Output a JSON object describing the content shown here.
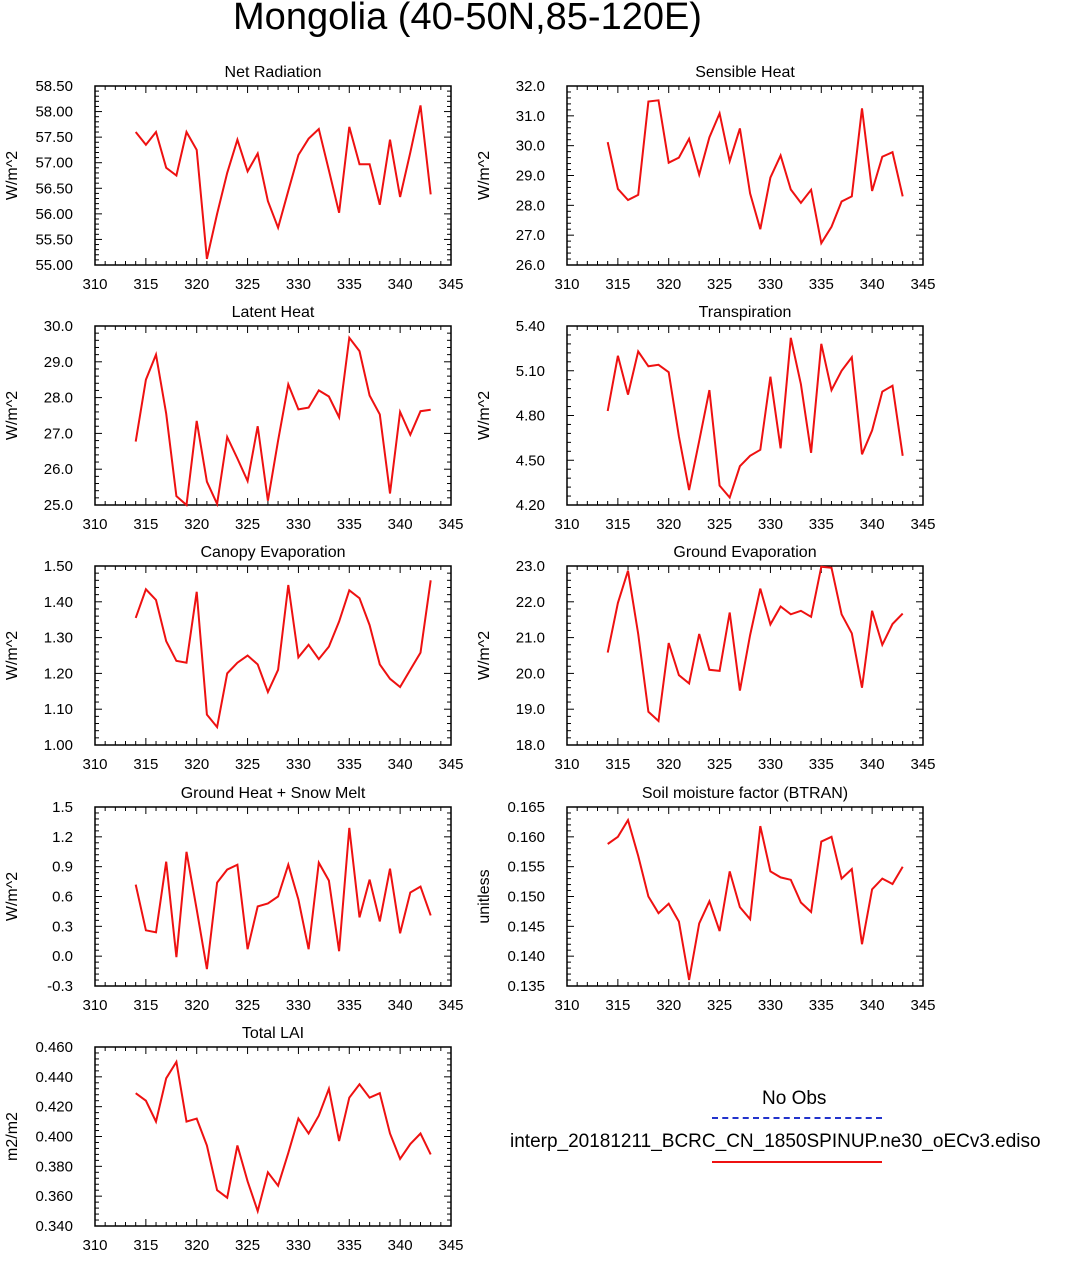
{
  "title": "Mongolia (40-50N,85-120E)",
  "legend": {
    "obs_label": "No Obs",
    "obs_color": "#2233cc",
    "model_label": "interp_20181211_BCRC_CN_1850SPINUP.ne30_oECv3.ediso",
    "model_color": "#ee1111"
  },
  "chart_data": [
    {
      "type": "line",
      "title": "Net Radiation",
      "ylabel": "W/m^2",
      "xlim": [
        310,
        345
      ],
      "ylim": [
        55.0,
        58.5
      ],
      "xticks": [
        "310",
        "315",
        "320",
        "325",
        "330",
        "335",
        "340",
        "345"
      ],
      "yticks": [
        "55.00",
        "55.50",
        "56.00",
        "56.50",
        "57.00",
        "57.50",
        "58.00",
        "58.50"
      ],
      "x": [
        314,
        315,
        316,
        317,
        318,
        319,
        320,
        321,
        322,
        323,
        324,
        325,
        326,
        327,
        328,
        329,
        330,
        331,
        332,
        333,
        334,
        335,
        336,
        337,
        338,
        339,
        340,
        341,
        342,
        343
      ],
      "series": [
        {
          "values": [
            57.6,
            57.35,
            57.6,
            56.9,
            56.75,
            57.6,
            57.25,
            55.12,
            56.0,
            56.8,
            57.45,
            56.83,
            57.18,
            56.25,
            55.73,
            56.45,
            57.15,
            57.47,
            57.66,
            56.85,
            56.02,
            57.7,
            56.97,
            56.97,
            56.18,
            57.45,
            56.33,
            57.2,
            58.12,
            56.38
          ]
        }
      ]
    },
    {
      "type": "line",
      "title": "Sensible Heat",
      "ylabel": "W/m^2",
      "xlim": [
        310,
        345
      ],
      "ylim": [
        26.0,
        32.0
      ],
      "xticks": [
        "310",
        "315",
        "320",
        "325",
        "330",
        "335",
        "340",
        "345"
      ],
      "yticks": [
        "26.0",
        "27.0",
        "28.0",
        "29.0",
        "30.0",
        "31.0",
        "32.0"
      ],
      "x": [
        314,
        315,
        316,
        317,
        318,
        319,
        320,
        321,
        322,
        323,
        324,
        325,
        326,
        327,
        328,
        329,
        330,
        331,
        332,
        333,
        334,
        335,
        336,
        337,
        338,
        339,
        340,
        341,
        342,
        343
      ],
      "series": [
        {
          "values": [
            30.12,
            28.55,
            28.18,
            28.35,
            31.48,
            31.52,
            29.43,
            29.6,
            30.23,
            29.03,
            30.28,
            31.08,
            29.48,
            30.58,
            28.4,
            27.2,
            28.93,
            29.67,
            28.53,
            28.08,
            28.52,
            26.73,
            27.28,
            28.13,
            28.3,
            31.25,
            28.48,
            29.63,
            29.78,
            28.3
          ]
        }
      ]
    },
    {
      "type": "line",
      "title": "Latent Heat",
      "ylabel": "W/m^2",
      "xlim": [
        310,
        345
      ],
      "ylim": [
        25.0,
        30.0
      ],
      "xticks": [
        "310",
        "315",
        "320",
        "325",
        "330",
        "335",
        "340",
        "345"
      ],
      "yticks": [
        "25.0",
        "26.0",
        "27.0",
        "28.0",
        "29.0",
        "30.0"
      ],
      "x": [
        314,
        315,
        316,
        317,
        318,
        319,
        320,
        321,
        322,
        323,
        324,
        325,
        326,
        327,
        328,
        329,
        330,
        331,
        332,
        333,
        334,
        335,
        336,
        337,
        338,
        339,
        340,
        341,
        342,
        343
      ],
      "series": [
        {
          "values": [
            26.77,
            28.5,
            29.2,
            27.55,
            25.25,
            25.0,
            27.35,
            25.65,
            25.03,
            26.9,
            26.3,
            25.67,
            27.2,
            25.12,
            26.8,
            28.37,
            27.67,
            27.72,
            28.2,
            28.03,
            27.45,
            29.67,
            29.3,
            28.06,
            27.53,
            25.32,
            27.6,
            26.96,
            27.62,
            27.66
          ]
        }
      ]
    },
    {
      "type": "line",
      "title": "Transpiration",
      "ylabel": "W/m^2",
      "xlim": [
        310,
        345
      ],
      "ylim": [
        4.2,
        5.4
      ],
      "xticks": [
        "310",
        "315",
        "320",
        "325",
        "330",
        "335",
        "340",
        "345"
      ],
      "yticks": [
        "4.20",
        "4.50",
        "4.80",
        "5.10",
        "5.40"
      ],
      "x": [
        314,
        315,
        316,
        317,
        318,
        319,
        320,
        321,
        322,
        323,
        324,
        325,
        326,
        327,
        328,
        329,
        330,
        331,
        332,
        333,
        334,
        335,
        336,
        337,
        338,
        339,
        340,
        341,
        342,
        343
      ],
      "series": [
        {
          "values": [
            4.83,
            5.2,
            4.94,
            5.23,
            5.13,
            5.14,
            5.09,
            4.66,
            4.3,
            4.63,
            4.97,
            4.33,
            4.25,
            4.46,
            4.53,
            4.57,
            5.06,
            4.58,
            5.32,
            5.01,
            4.55,
            5.28,
            4.97,
            5.1,
            5.19,
            4.54,
            4.7,
            4.96,
            5.0,
            4.53
          ]
        }
      ]
    },
    {
      "type": "line",
      "title": "Canopy Evaporation",
      "ylabel": "W/m^2",
      "xlim": [
        310,
        345
      ],
      "ylim": [
        1.0,
        1.5
      ],
      "xticks": [
        "310",
        "315",
        "320",
        "325",
        "330",
        "335",
        "340",
        "345"
      ],
      "yticks": [
        "1.00",
        "1.10",
        "1.20",
        "1.30",
        "1.40",
        "1.50"
      ],
      "x": [
        314,
        315,
        316,
        317,
        318,
        319,
        320,
        321,
        322,
        323,
        324,
        325,
        326,
        327,
        328,
        329,
        330,
        331,
        332,
        333,
        334,
        335,
        336,
        337,
        338,
        339,
        340,
        341,
        342,
        343
      ],
      "series": [
        {
          "values": [
            1.355,
            1.435,
            1.405,
            1.29,
            1.235,
            1.23,
            1.428,
            1.085,
            1.05,
            1.2,
            1.23,
            1.25,
            1.225,
            1.148,
            1.21,
            1.447,
            1.245,
            1.28,
            1.24,
            1.275,
            1.345,
            1.432,
            1.41,
            1.335,
            1.225,
            1.185,
            1.162,
            1.21,
            1.258,
            1.46
          ]
        }
      ]
    },
    {
      "type": "line",
      "title": "Ground Evaporation",
      "ylabel": "W/m^2",
      "xlim": [
        310,
        345
      ],
      "ylim": [
        18.0,
        23.0
      ],
      "xticks": [
        "310",
        "315",
        "320",
        "325",
        "330",
        "335",
        "340",
        "345"
      ],
      "yticks": [
        "18.0",
        "19.0",
        "20.0",
        "21.0",
        "22.0",
        "23.0"
      ],
      "x": [
        314,
        315,
        316,
        317,
        318,
        319,
        320,
        321,
        322,
        323,
        324,
        325,
        326,
        327,
        328,
        329,
        330,
        331,
        332,
        333,
        334,
        335,
        336,
        337,
        338,
        339,
        340,
        341,
        342,
        343
      ],
      "series": [
        {
          "values": [
            20.58,
            21.97,
            22.87,
            21.1,
            18.93,
            18.67,
            20.85,
            19.95,
            19.72,
            21.1,
            20.1,
            20.07,
            21.7,
            19.52,
            21.07,
            22.37,
            21.37,
            21.87,
            21.65,
            21.75,
            21.58,
            22.98,
            22.95,
            21.65,
            21.12,
            19.6,
            21.75,
            20.8,
            21.38,
            21.67
          ]
        }
      ]
    },
    {
      "type": "line",
      "title": "Ground Heat + Snow Melt",
      "ylabel": "W/m^2",
      "xlim": [
        310,
        345
      ],
      "ylim": [
        -0.3,
        1.5
      ],
      "xticks": [
        "310",
        "315",
        "320",
        "325",
        "330",
        "335",
        "340",
        "345"
      ],
      "yticks": [
        "-0.3",
        "0.0",
        "0.3",
        "0.6",
        "0.9",
        "1.2",
        "1.5"
      ],
      "x": [
        314,
        315,
        316,
        317,
        318,
        319,
        320,
        321,
        322,
        323,
        324,
        325,
        326,
        327,
        328,
        329,
        330,
        331,
        332,
        333,
        334,
        335,
        336,
        337,
        338,
        339,
        340,
        341,
        342,
        343
      ],
      "series": [
        {
          "values": [
            0.72,
            0.26,
            0.24,
            0.95,
            -0.01,
            1.05,
            0.47,
            -0.13,
            0.74,
            0.87,
            0.92,
            0.07,
            0.5,
            0.53,
            0.6,
            0.92,
            0.57,
            0.07,
            0.94,
            0.76,
            0.05,
            1.29,
            0.39,
            0.77,
            0.35,
            0.88,
            0.23,
            0.64,
            0.7,
            0.41
          ]
        }
      ]
    },
    {
      "type": "line",
      "title": "Soil moisture factor (BTRAN)",
      "ylabel": "unitless",
      "xlim": [
        310,
        345
      ],
      "ylim": [
        0.135,
        0.165
      ],
      "xticks": [
        "310",
        "315",
        "320",
        "325",
        "330",
        "335",
        "340",
        "345"
      ],
      "yticks": [
        "0.135",
        "0.140",
        "0.145",
        "0.150",
        "0.155",
        "0.160",
        "0.165"
      ],
      "x": [
        314,
        315,
        316,
        317,
        318,
        319,
        320,
        321,
        322,
        323,
        324,
        325,
        326,
        327,
        328,
        329,
        330,
        331,
        332,
        333,
        334,
        335,
        336,
        337,
        338,
        339,
        340,
        341,
        342,
        343
      ],
      "series": [
        {
          "values": [
            0.1588,
            0.16,
            0.1628,
            0.1568,
            0.15,
            0.1472,
            0.1488,
            0.1458,
            0.136,
            0.1455,
            0.1492,
            0.1442,
            0.1542,
            0.1482,
            0.1462,
            0.1618,
            0.1542,
            0.1532,
            0.1528,
            0.149,
            0.1474,
            0.1592,
            0.16,
            0.153,
            0.1546,
            0.142,
            0.1512,
            0.153,
            0.1521,
            0.155
          ]
        }
      ]
    },
    {
      "type": "line",
      "title": "Total LAI",
      "ylabel": "m2/m2",
      "xlim": [
        310,
        345
      ],
      "ylim": [
        0.34,
        0.46
      ],
      "xticks": [
        "310",
        "315",
        "320",
        "325",
        "330",
        "335",
        "340",
        "345"
      ],
      "yticks": [
        "0.340",
        "0.360",
        "0.380",
        "0.400",
        "0.420",
        "0.440",
        "0.460"
      ],
      "x": [
        314,
        315,
        316,
        317,
        318,
        319,
        320,
        321,
        322,
        323,
        324,
        325,
        326,
        327,
        328,
        329,
        330,
        331,
        332,
        333,
        334,
        335,
        336,
        337,
        338,
        339,
        340,
        341,
        342,
        343
      ],
      "series": [
        {
          "values": [
            0.429,
            0.424,
            0.41,
            0.439,
            0.45,
            0.41,
            0.412,
            0.394,
            0.364,
            0.359,
            0.394,
            0.37,
            0.35,
            0.376,
            0.367,
            0.389,
            0.412,
            0.402,
            0.414,
            0.432,
            0.397,
            0.426,
            0.435,
            0.426,
            0.429,
            0.402,
            0.385,
            0.395,
            0.402,
            0.388
          ]
        }
      ]
    }
  ]
}
